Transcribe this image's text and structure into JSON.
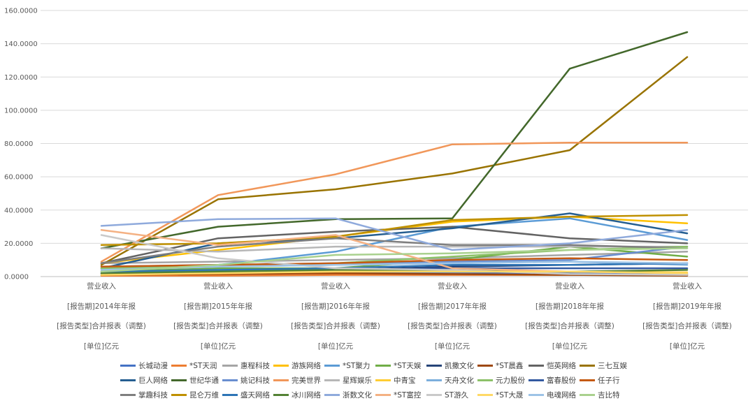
{
  "chart_data": {
    "type": "line",
    "title": "",
    "ylim": [
      0,
      160
    ],
    "y_ticks": [
      "0.0000",
      "20.0000",
      "40.0000",
      "60.0000",
      "80.0000",
      "100.0000",
      "120.0000",
      "140.0000",
      "160.0000"
    ],
    "grid": "horizontal",
    "legend": "bottom",
    "x_labels": [
      [
        "营业收入",
        "[报告期]2014年年报",
        "[报告类型]合并报表（调整)",
        "[单位]亿元"
      ],
      [
        "营业收入",
        "[报告期]2015年年报",
        "[报告类型]合并报表（调整)",
        "[单位]亿元"
      ],
      [
        "营业收入",
        "[报告期]2016年年报",
        "[报告类型]合并报表（调整)",
        "[单位]亿元"
      ],
      [
        "营业收入",
        "[报告期]2017年年报",
        "[报告类型]合并报表（调整)",
        "[单位]亿元"
      ],
      [
        "营业收入",
        "[报告期]2018年年报",
        "[报告类型]合并报表（调整)",
        "[单位]亿元"
      ],
      [
        "营业收入",
        "[报告期]2019年年报",
        "[报告类型]合并报表（调整)",
        "[单位]亿元"
      ]
    ],
    "series": [
      {
        "name": "长城动漫",
        "color": "#4472C4",
        "values": [
          2,
          2.5,
          2,
          2.5,
          2,
          1.5
        ]
      },
      {
        "name": "*ST天润",
        "color": "#ED7D31",
        "values": [
          0.5,
          0.5,
          1,
          1,
          1,
          1
        ]
      },
      {
        "name": "惠程科技",
        "color": "#A5A5A5",
        "values": [
          8,
          9,
          10,
          11,
          13,
          15
        ]
      },
      {
        "name": "游族网络",
        "color": "#FFC000",
        "values": [
          8,
          16,
          24,
          33,
          36,
          32
        ]
      },
      {
        "name": "*ST聚力",
        "color": "#5B9BD5",
        "values": [
          5,
          7,
          15,
          30,
          35,
          22
        ]
      },
      {
        "name": "*ST天娱",
        "color": "#70AD47",
        "values": [
          3,
          5,
          5,
          10,
          18,
          12
        ]
      },
      {
        "name": "凯撒文化",
        "color": "#264478",
        "values": [
          2,
          3,
          4,
          6,
          7,
          8
        ]
      },
      {
        "name": "*ST晨鑫",
        "color": "#9E480E",
        "values": [
          1,
          1.5,
          2,
          1.5,
          1,
          0.5
        ]
      },
      {
        "name": "恺英网络",
        "color": "#636363",
        "values": [
          8,
          23,
          27,
          30,
          23,
          20
        ]
      },
      {
        "name": "三七互娱",
        "color": "#997300",
        "values": [
          7,
          46.5,
          52.5,
          62,
          76,
          132
        ]
      },
      {
        "name": "巨人网络",
        "color": "#255E91",
        "values": [
          5,
          20,
          23,
          29,
          38,
          26
        ]
      },
      {
        "name": "世纪华通",
        "color": "#43682B",
        "values": [
          17,
          30,
          34.5,
          35,
          125,
          147
        ]
      },
      {
        "name": "姚记科技",
        "color": "#698ED0",
        "values": [
          6,
          7,
          8,
          9,
          10,
          18
        ]
      },
      {
        "name": "完美世界",
        "color": "#F1975A",
        "values": [
          9,
          49,
          61.5,
          79.5,
          80.5,
          80.5
        ]
      },
      {
        "name": "星辉娱乐",
        "color": "#B7B7B7",
        "values": [
          17,
          15,
          18,
          18,
          18,
          18
        ]
      },
      {
        "name": "中青宝",
        "color": "#FFCD33",
        "values": [
          3,
          3.5,
          4,
          3.5,
          3,
          2.5
        ]
      },
      {
        "name": "天舟文化",
        "color": "#7CAFDD",
        "values": [
          4,
          6,
          7,
          8,
          9,
          7
        ]
      },
      {
        "name": "元力股份",
        "color": "#8CC168",
        "values": [
          5,
          6,
          8,
          12,
          16,
          18
        ]
      },
      {
        "name": "富春股份",
        "color": "#335AA1",
        "values": [
          2,
          3,
          4,
          5,
          5,
          5
        ]
      },
      {
        "name": "任子行",
        "color": "#C55A11",
        "values": [
          6,
          7,
          8,
          10,
          11,
          10
        ]
      },
      {
        "name": "掌趣科技",
        "color": "#7F7F7F",
        "values": [
          8,
          18,
          23,
          19,
          19,
          17
        ]
      },
      {
        "name": "昆仑万维",
        "color": "#BF9000",
        "values": [
          19,
          20,
          24,
          34,
          36,
          37
        ]
      },
      {
        "name": "盛天网络",
        "color": "#2E75B6",
        "values": [
          3,
          4,
          5,
          7,
          7,
          8
        ]
      },
      {
        "name": "冰川网络",
        "color": "#548235",
        "values": [
          2,
          3,
          4,
          4,
          3,
          4
        ]
      },
      {
        "name": "浙数文化",
        "color": "#8FAADC",
        "values": [
          30.5,
          34.5,
          35,
          16,
          20,
          28
        ]
      },
      {
        "name": "*ST富控",
        "color": "#F4B183",
        "values": [
          28,
          19,
          25,
          5,
          3,
          2
        ]
      },
      {
        "name": "ST游久",
        "color": "#C9C9C9",
        "values": [
          25,
          11,
          5,
          4,
          1.5,
          1
        ]
      },
      {
        "name": "*ST大晟",
        "color": "#FFD966",
        "values": [
          1,
          2,
          3,
          3,
          3,
          2
        ]
      },
      {
        "name": "电魂网络",
        "color": "#9DC3E6",
        "values": [
          4,
          6,
          7,
          8,
          9,
          8
        ]
      },
      {
        "name": "吉比特",
        "color": "#A9D18E",
        "values": [
          3,
          7,
          13,
          14,
          16,
          17
        ]
      }
    ]
  }
}
